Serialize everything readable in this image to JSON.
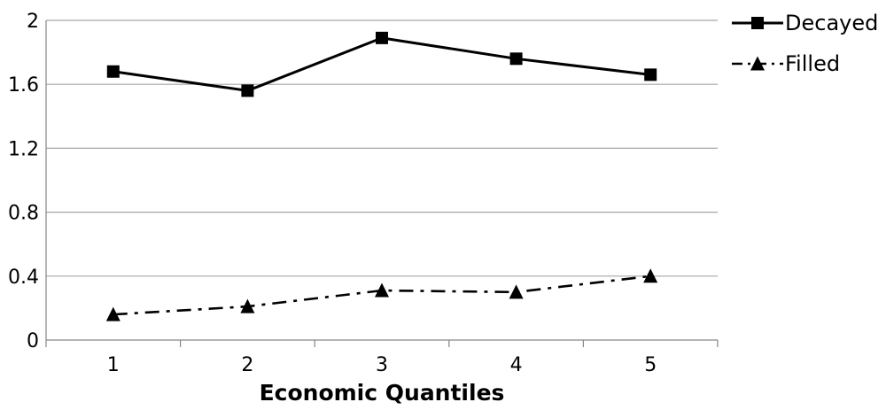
{
  "chart_data": {
    "type": "line",
    "categories": [
      "1",
      "2",
      "3",
      "4",
      "5"
    ],
    "series": [
      {
        "name": "Decayed",
        "values": [
          1.68,
          1.56,
          1.89,
          1.76,
          1.66
        ],
        "marker": "square",
        "line_style": "solid",
        "color": "#000000"
      },
      {
        "name": "Filled",
        "values": [
          0.16,
          0.21,
          0.31,
          0.3,
          0.4
        ],
        "marker": "triangle",
        "line_style": "dash-dot",
        "color": "#000000"
      }
    ],
    "xlabel": "Economic Quantiles",
    "ylabel": "",
    "title": "",
    "ylim": [
      0,
      2
    ],
    "yticks": [
      "0",
      "0.4",
      "0.8",
      "1.2",
      "1.6",
      "2"
    ],
    "grid": "horizontal",
    "legend": "right-top",
    "gridline_color": "#a6a6a6",
    "axis_color": "#868686"
  }
}
